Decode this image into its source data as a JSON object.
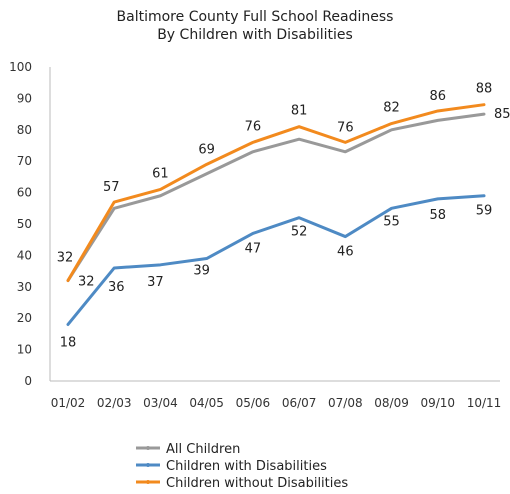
{
  "chart_data": {
    "type": "line",
    "title": [
      "Baltimore County Full School Readiness",
      "By Children with Disabilities"
    ],
    "categories": [
      "01/02",
      "02/03",
      "03/04",
      "04/05",
      "05/06",
      "06/07",
      "07/08",
      "08/09",
      "09/10",
      "10/11"
    ],
    "ylim": [
      0,
      100
    ],
    "yticks": [
      0,
      10,
      20,
      30,
      40,
      50,
      60,
      70,
      80,
      90,
      100
    ],
    "grid": false,
    "legend_position": "bottom",
    "series": [
      {
        "name": "All Children",
        "color": "#999999",
        "values": [
          32,
          55,
          59,
          66,
          73,
          77,
          73,
          80,
          83,
          85
        ],
        "labels": [
          null,
          null,
          null,
          null,
          null,
          null,
          null,
          null,
          null,
          "85"
        ]
      },
      {
        "name": "Children with Disabilities",
        "color": "#4e8ac4",
        "values": [
          18,
          36,
          37,
          39,
          47,
          52,
          46,
          55,
          58,
          59
        ],
        "labels": [
          "18",
          "36",
          "37",
          "39",
          "47",
          "52",
          "46",
          "55",
          "58",
          "59"
        ]
      },
      {
        "name": "Children without Disabilities",
        "color": "#f28a1e",
        "values": [
          32,
          57,
          61,
          69,
          76,
          81,
          76,
          82,
          86,
          88
        ],
        "labels": [
          "32",
          "57",
          "61",
          "69",
          "76",
          "81",
          "76",
          "82",
          "86",
          "88"
        ]
      }
    ],
    "extra_labels": [
      "32"
    ]
  }
}
